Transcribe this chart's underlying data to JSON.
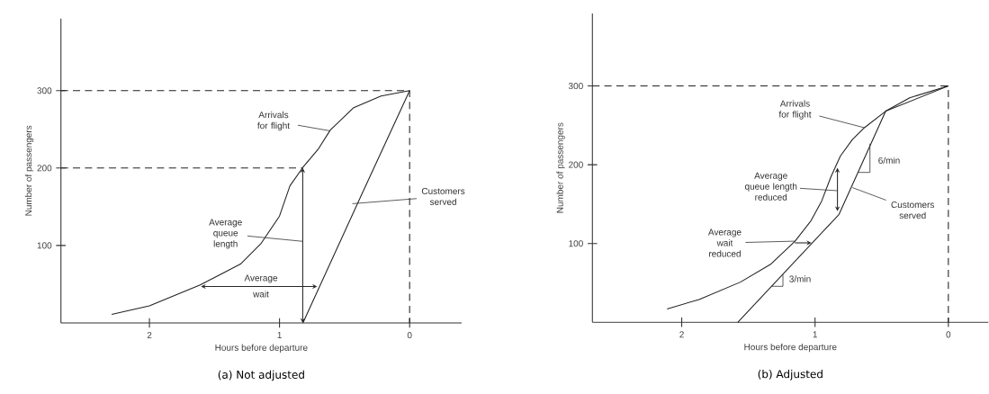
{
  "chart_data": [
    {
      "type": "line",
      "title": "(a) Not adjusted",
      "xlabel": "Hours before departure",
      "ylabel": "Number of passengers",
      "xlim": [
        2.68,
        -0.4
      ],
      "ylim": [
        0,
        393
      ],
      "xticks": [
        2,
        1,
        0
      ],
      "yticks": [
        100,
        200,
        300
      ],
      "series": [
        {
          "color": "#222222",
          "x": [
            2.29,
            2.0,
            1.61,
            1.3,
            1.14,
            1.0,
            0.92,
            0.82,
            0.7,
            0.61,
            0.43,
            0.22,
            0
          ],
          "values": [
            11,
            22,
            49,
            76,
            103,
            138,
            177,
            201,
            225,
            249,
            278,
            293,
            300
          ]
        },
        {
          "color": "#222222",
          "x": [
            0.82,
            0.36,
            0
          ],
          "values": [
            0,
            169,
            300
          ]
        },
        {
          "color": "#222222",
          "line_style": "dashed",
          "x": [
            2.68,
            0,
            0
          ],
          "values": [
            300,
            300,
            0
          ]
        },
        {
          "color": "#222222",
          "line_style": "dashed",
          "x": [
            2.68,
            0.82
          ],
          "values": [
            200,
            200
          ]
        }
      ],
      "annotations": [
        {
          "text": "Arrivals for flight",
          "x": 0.61,
          "y": 248
        },
        {
          "text": "Customers served",
          "x": 0.44,
          "y": 154
        },
        "Average queue length",
        "Average wait"
      ]
    },
    {
      "type": "line",
      "title": "(b) Adjusted",
      "xlabel": "Hours before departure",
      "ylabel": "Number of passengers",
      "xlim": [
        2.67,
        -0.3
      ],
      "ylim": [
        0,
        392
      ],
      "xticks": [
        2,
        1,
        0
      ],
      "yticks": [
        100,
        200,
        300
      ],
      "series": [
        {
          "color": "#222222",
          "x": [
            2.11,
            1.87,
            1.56,
            1.33,
            1.15,
            1.03,
            0.95,
            0.88,
            0.81,
            0.72,
            0.63,
            0.47,
            0.29,
            0
          ],
          "values": [
            17,
            29,
            51,
            74,
            103,
            129,
            154,
            185,
            211,
            232,
            247,
            268,
            285,
            300
          ]
        },
        {
          "color": "#222222",
          "x": [
            1.58,
            0.82,
            0.47,
            0
          ],
          "values": [
            0,
            137,
            268,
            300
          ]
        },
        {
          "color": "#222222",
          "line_style": "dashed",
          "x": [
            2.67,
            0,
            0
          ],
          "values": [
            300,
            300,
            0
          ]
        }
      ],
      "annotations": [
        {
          "text": "Arrivals for flight",
          "x": 0.63,
          "y": 247
        },
        {
          "text": "Customers served",
          "x": 0.72,
          "y": 171
        },
        "Average queue length reduced",
        {
          "text": "Average wait reduced",
          "x": 1.15,
          "y": 103
        },
        "6/min",
        "3/min"
      ]
    }
  ]
}
